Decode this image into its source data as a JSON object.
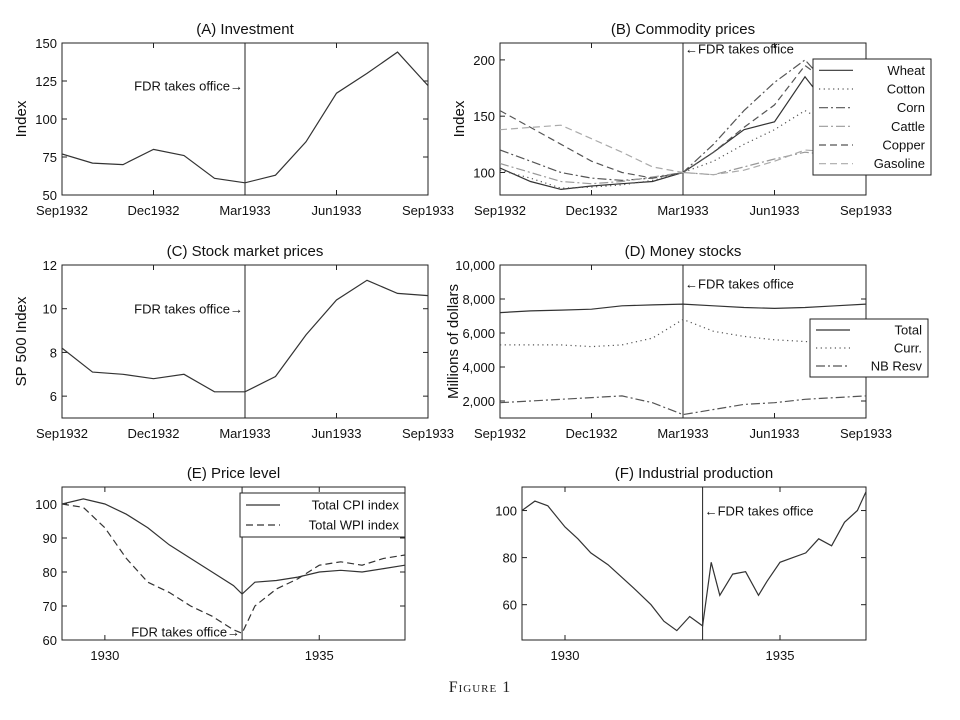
{
  "caption": "Figure 1",
  "chart_data": [
    {
      "id": "A",
      "type": "line",
      "title": "(A) Investment",
      "ylabel": "Index",
      "xlabel": "",
      "ylim": [
        50,
        150
      ],
      "yticks": [
        50,
        75,
        100,
        125,
        150
      ],
      "xlim": [
        0,
        12
      ],
      "xticks": [
        0,
        3,
        6,
        9,
        12
      ],
      "xtick_labels": [
        "Sep1932",
        "Dec1932",
        "Mar1933",
        "Jun1933",
        "Sep1933"
      ],
      "vline": 6,
      "annotation": {
        "text": "FDR takes office→",
        "x": 6,
        "y": 122,
        "align": "end"
      },
      "series": [
        {
          "style": "solid",
          "color": "#333333",
          "x": [
            0,
            1,
            2,
            3,
            4,
            5,
            6,
            7,
            8,
            9,
            10,
            11,
            12
          ],
          "y": [
            77,
            71,
            70,
            80,
            76,
            61,
            58,
            63,
            85,
            117,
            130,
            144,
            122
          ]
        }
      ]
    },
    {
      "id": "B",
      "type": "line",
      "title": "(B) Commodity prices",
      "ylabel": "Index",
      "xlabel": "",
      "ylim": [
        80,
        215
      ],
      "yticks": [
        100,
        150,
        200
      ],
      "xlim": [
        0,
        12
      ],
      "xticks": [
        0,
        3,
        6,
        9,
        12
      ],
      "xtick_labels": [
        "Sep1932",
        "Dec1932",
        "Mar1933",
        "Jun1933",
        "Sep1933"
      ],
      "vline": 6,
      "annotation": {
        "text": "←FDR takes office",
        "x": 6,
        "y": 210,
        "align": "start"
      },
      "legend": {
        "position": "top-right"
      },
      "series": [
        {
          "name": "Wheat",
          "style": "solid",
          "color": "#333333",
          "x": [
            0,
            1,
            2,
            3,
            4,
            5,
            6,
            7,
            8,
            9,
            10,
            11,
            12
          ],
          "y": [
            104,
            92,
            85,
            88,
            90,
            92,
            100,
            118,
            138,
            145,
            185,
            150,
            150
          ]
        },
        {
          "name": "Cotton",
          "style": "dotted",
          "color": "#555555",
          "x": [
            0,
            1,
            2,
            3,
            4,
            5,
            6,
            7,
            8,
            9,
            10,
            11,
            12
          ],
          "y": [
            102,
            95,
            86,
            87,
            89,
            93,
            100,
            110,
            125,
            138,
            155,
            140,
            135
          ]
        },
        {
          "name": "Corn",
          "style": "dashdot",
          "color": "#555555",
          "x": [
            0,
            1,
            2,
            3,
            4,
            5,
            6,
            7,
            8,
            9,
            10,
            11,
            12
          ],
          "y": [
            120,
            110,
            100,
            95,
            93,
            95,
            100,
            125,
            155,
            180,
            200,
            170,
            160
          ]
        },
        {
          "name": "Cattle",
          "style": "dashdot",
          "color": "#999999",
          "x": [
            0,
            1,
            2,
            3,
            4,
            5,
            6,
            7,
            8,
            9,
            10,
            11,
            12
          ],
          "y": [
            108,
            100,
            92,
            90,
            92,
            96,
            100,
            98,
            105,
            112,
            118,
            115,
            112
          ]
        },
        {
          "name": "Copper",
          "style": "dashed",
          "color": "#555555",
          "x": [
            0,
            1,
            2,
            3,
            4,
            5,
            6,
            7,
            8,
            9,
            10,
            11,
            12
          ],
          "y": [
            155,
            140,
            125,
            110,
            100,
            95,
            100,
            118,
            140,
            160,
            195,
            175,
            165
          ]
        },
        {
          "name": "Gasoline",
          "style": "dashed",
          "color": "#aaaaaa",
          "x": [
            0,
            1,
            2,
            3,
            4,
            5,
            6,
            7,
            8,
            9,
            10,
            11,
            12
          ],
          "y": [
            138,
            140,
            142,
            130,
            118,
            105,
            100,
            98,
            102,
            110,
            120,
            118,
            115
          ]
        }
      ]
    },
    {
      "id": "C",
      "type": "line",
      "title": "(C) Stock market prices",
      "ylabel": "SP 500 Index",
      "xlabel": "",
      "ylim": [
        5,
        12
      ],
      "yticks": [
        6,
        8,
        10,
        12
      ],
      "xlim": [
        0,
        12
      ],
      "xticks": [
        0,
        3,
        6,
        9,
        12
      ],
      "xtick_labels": [
        "Sep1932",
        "Dec1932",
        "Mar1933",
        "Jun1933",
        "Sep1933"
      ],
      "vline": 6,
      "annotation": {
        "text": "FDR takes office→",
        "x": 6,
        "y": 10,
        "align": "end"
      },
      "series": [
        {
          "style": "solid",
          "color": "#333333",
          "x": [
            0,
            1,
            2,
            3,
            4,
            5,
            6,
            7,
            8,
            9,
            10,
            11,
            12
          ],
          "y": [
            8.2,
            7.1,
            7.0,
            6.8,
            7.0,
            6.2,
            6.2,
            6.9,
            8.8,
            10.4,
            11.3,
            10.7,
            10.6
          ]
        }
      ]
    },
    {
      "id": "D",
      "type": "line",
      "title": "(D) Money stocks",
      "ylabel": "Millions of dollars",
      "xlabel": "",
      "ylim": [
        1000,
        10000
      ],
      "yticks": [
        2000,
        4000,
        6000,
        8000,
        10000
      ],
      "ytick_labels": [
        "2,000",
        "4,000",
        "6,000",
        "8,000",
        "10,000"
      ],
      "xlim": [
        0,
        12
      ],
      "xticks": [
        0,
        3,
        6,
        9,
        12
      ],
      "xtick_labels": [
        "Sep1932",
        "Dec1932",
        "Mar1933",
        "Jun1933",
        "Sep1933"
      ],
      "vline": 6,
      "annotation": {
        "text": "←FDR takes office",
        "x": 6,
        "y": 8900,
        "align": "start"
      },
      "legend": {
        "position": "right"
      },
      "series": [
        {
          "name": "Total",
          "style": "solid",
          "color": "#333333",
          "x": [
            0,
            1,
            2,
            3,
            4,
            5,
            6,
            7,
            8,
            9,
            10,
            11,
            12
          ],
          "y": [
            7200,
            7300,
            7350,
            7400,
            7600,
            7650,
            7700,
            7600,
            7500,
            7450,
            7500,
            7600,
            7700
          ]
        },
        {
          "name": "Curr.",
          "style": "dotted",
          "color": "#555555",
          "x": [
            0,
            1,
            2,
            3,
            4,
            5,
            6,
            7,
            8,
            9,
            10,
            11,
            12
          ],
          "y": [
            5300,
            5300,
            5300,
            5200,
            5300,
            5700,
            6800,
            6100,
            5800,
            5600,
            5500,
            5400,
            5400
          ]
        },
        {
          "name": "NB Resv",
          "style": "dashdot",
          "color": "#555555",
          "x": [
            0,
            1,
            2,
            3,
            4,
            5,
            6,
            7,
            8,
            9,
            10,
            11,
            12
          ],
          "y": [
            1900,
            2000,
            2100,
            2200,
            2300,
            1900,
            1200,
            1500,
            1800,
            1900,
            2100,
            2200,
            2300
          ]
        }
      ]
    },
    {
      "id": "E",
      "type": "line",
      "title": "(E) Price level",
      "ylabel": "",
      "xlabel": "",
      "ylim": [
        60,
        105
      ],
      "yticks": [
        60,
        70,
        80,
        90,
        100
      ],
      "xlim": [
        1929,
        1937
      ],
      "xticks": [
        1930,
        1935
      ],
      "xtick_labels": [
        "1930",
        "1935"
      ],
      "vline": 1933.2,
      "annotation": {
        "text": "FDR takes office→",
        "x": 1933.2,
        "y": 62.5,
        "align": "end"
      },
      "legend": {
        "position": "top-right"
      },
      "series": [
        {
          "name": "Total CPI index",
          "style": "solid",
          "color": "#333333",
          "x": [
            1929,
            1929.5,
            1930,
            1930.5,
            1931,
            1931.5,
            1932,
            1932.5,
            1933,
            1933.2,
            1933.5,
            1934,
            1934.5,
            1935,
            1935.5,
            1936,
            1936.5,
            1937
          ],
          "y": [
            100,
            101.5,
            100,
            97,
            93,
            88,
            84,
            80,
            76,
            73.5,
            77,
            77.5,
            78.5,
            80,
            80.5,
            80,
            81,
            82
          ]
        },
        {
          "name": "Total WPI index",
          "style": "dashed",
          "color": "#333333",
          "x": [
            1929,
            1929.5,
            1930,
            1930.5,
            1931,
            1931.5,
            1932,
            1932.5,
            1933,
            1933.2,
            1933.5,
            1934,
            1934.5,
            1935,
            1935.5,
            1936,
            1936.5,
            1937
          ],
          "y": [
            100,
            99,
            93,
            84,
            77,
            74,
            70,
            67,
            63,
            62,
            70,
            75,
            78,
            82,
            83,
            82,
            84,
            85
          ]
        }
      ]
    },
    {
      "id": "F",
      "type": "line",
      "title": "(F) Industrial production",
      "ylabel": "",
      "xlabel": "",
      "ylim": [
        45,
        110
      ],
      "yticks": [
        60,
        80,
        100
      ],
      "xlim": [
        1929,
        1937
      ],
      "xticks": [
        1930,
        1935
      ],
      "xtick_labels": [
        "1930",
        "1935"
      ],
      "vline": 1933.2,
      "annotation": {
        "text": "←FDR takes office",
        "x": 1933.2,
        "y": 100,
        "align": "start"
      },
      "series": [
        {
          "style": "solid",
          "color": "#333333",
          "x": [
            1929,
            1929.3,
            1929.6,
            1930,
            1930.3,
            1930.6,
            1931,
            1931.3,
            1931.6,
            1932,
            1932.3,
            1932.6,
            1932.9,
            1933.2,
            1933.4,
            1933.6,
            1933.9,
            1934.2,
            1934.5,
            1934.7,
            1935,
            1935.3,
            1935.6,
            1935.9,
            1936.2,
            1936.5,
            1936.8,
            1937
          ],
          "y": [
            100,
            104,
            102,
            93,
            88,
            82,
            77,
            72,
            67,
            60,
            53,
            49,
            55,
            51,
            78,
            64,
            73,
            74,
            64,
            70,
            78,
            80,
            82,
            88,
            85,
            95,
            100,
            108
          ]
        }
      ]
    }
  ]
}
